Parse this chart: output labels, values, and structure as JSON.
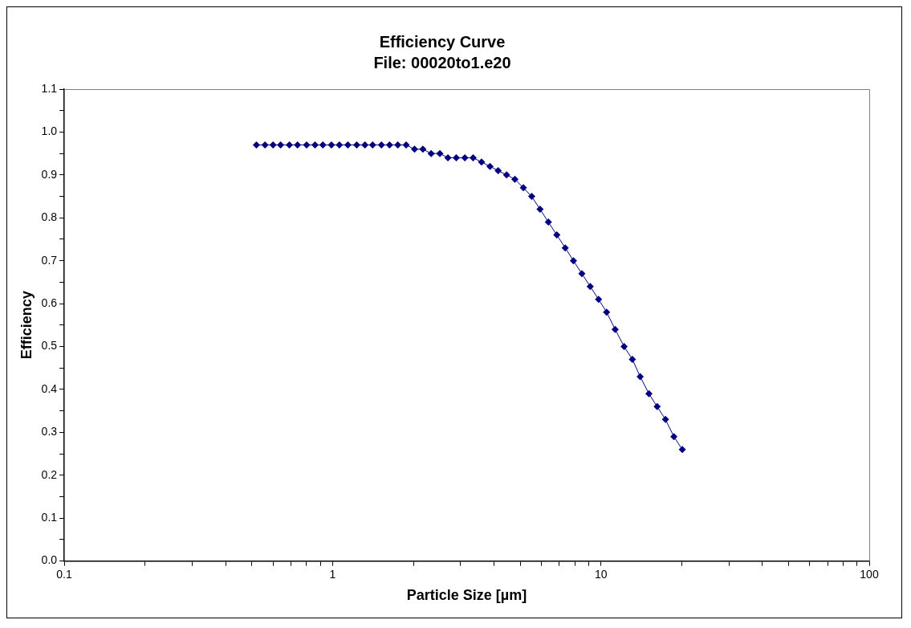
{
  "chart_data": {
    "type": "line",
    "title": "Efficiency Curve",
    "subtitle": "File: 00020to1.e20",
    "xlabel": "Particle Size [µm]",
    "ylabel": "Efficiency",
    "log": "x",
    "grid": false,
    "legend": false,
    "marker": "diamond",
    "line_style": "solid",
    "xlim": [
      0.1,
      100
    ],
    "xticks": [
      0.1,
      {
        "value": 0.2,
        "label": null
      },
      {
        "value": 0.3,
        "label": null
      },
      {
        "value": 0.4,
        "label": null
      },
      {
        "value": 0.5,
        "label": null
      },
      {
        "value": 0.6,
        "label": null
      },
      {
        "value": 0.7,
        "label": null
      },
      {
        "value": 0.8,
        "label": null
      },
      {
        "value": 0.9,
        "label": null
      },
      1,
      {
        "value": 2,
        "label": null
      },
      {
        "value": 3,
        "label": null
      },
      {
        "value": 4,
        "label": null
      },
      {
        "value": 5,
        "label": null
      },
      {
        "value": 6,
        "label": null
      },
      {
        "value": 7,
        "label": null
      },
      {
        "value": 8,
        "label": null
      },
      {
        "value": 9,
        "label": null
      },
      10,
      {
        "value": 20,
        "label": null
      },
      {
        "value": 30,
        "label": null
      },
      {
        "value": 40,
        "label": null
      },
      {
        "value": 50,
        "label": null
      },
      {
        "value": 60,
        "label": null
      },
      {
        "value": 70,
        "label": null
      },
      {
        "value": 80,
        "label": null
      },
      {
        "value": 90,
        "label": null
      },
      100
    ],
    "ylim": [
      0,
      1.1
    ],
    "yticks": [
      {
        "value": 0,
        "label": "0.0"
      },
      {
        "value": 0.05,
        "label": null
      },
      {
        "value": 0.1,
        "label": "0.1"
      },
      {
        "value": 0.15,
        "label": null
      },
      {
        "value": 0.2,
        "label": "0.2"
      },
      {
        "value": 0.25,
        "label": null
      },
      {
        "value": 0.3,
        "label": "0.3"
      },
      {
        "value": 0.35,
        "label": null
      },
      {
        "value": 0.4,
        "label": "0.4"
      },
      {
        "value": 0.45,
        "label": null
      },
      {
        "value": 0.5,
        "label": "0.5"
      },
      {
        "value": 0.55,
        "label": null
      },
      {
        "value": 0.6,
        "label": "0.6"
      },
      {
        "value": 0.65,
        "label": null
      },
      {
        "value": 0.7,
        "label": "0.7"
      },
      {
        "value": 0.75,
        "label": null
      },
      {
        "value": 0.8,
        "label": "0.8"
      },
      {
        "value": 0.85,
        "label": null
      },
      {
        "value": 0.9,
        "label": "0.9"
      },
      {
        "value": 0.95,
        "label": null
      },
      {
        "value": 1,
        "label": "1.0"
      },
      {
        "value": 1.05,
        "label": null
      },
      {
        "value": 1.1,
        "label": "1.1"
      }
    ],
    "series": [
      {
        "color": "#000080",
        "x": [
          0.52,
          0.56,
          0.6,
          0.64,
          0.69,
          0.74,
          0.8,
          0.86,
          0.92,
          0.99,
          1.06,
          1.14,
          1.23,
          1.32,
          1.41,
          1.52,
          1.63,
          1.75,
          1.88,
          2.02,
          2.17,
          2.33,
          2.51,
          2.69,
          2.89,
          3.11,
          3.34,
          3.59,
          3.86,
          4.14,
          4.45,
          4.78,
          5.14,
          5.52,
          5.93,
          6.37,
          6.85,
          7.36,
          7.9,
          8.49,
          9.12,
          9.8,
          10.5,
          11.3,
          12.2,
          13.1,
          14.0,
          15.1,
          16.2,
          17.4,
          18.7,
          20.1
        ],
        "values": [
          0.97,
          0.97,
          0.97,
          0.97,
          0.97,
          0.97,
          0.97,
          0.97,
          0.97,
          0.97,
          0.97,
          0.97,
          0.97,
          0.97,
          0.97,
          0.97,
          0.97,
          0.97,
          0.97,
          0.96,
          0.96,
          0.95,
          0.95,
          0.94,
          0.94,
          0.94,
          0.94,
          0.93,
          0.92,
          0.91,
          0.9,
          0.89,
          0.87,
          0.85,
          0.82,
          0.79,
          0.76,
          0.73,
          0.7,
          0.67,
          0.64,
          0.61,
          0.58,
          0.54,
          0.5,
          0.47,
          0.43,
          0.39,
          0.36,
          0.33,
          0.29,
          0.26
        ]
      }
    ]
  }
}
